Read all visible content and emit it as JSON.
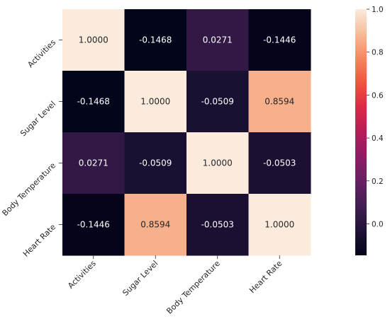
{
  "chart_data": {
    "type": "heatmap",
    "title": "",
    "xlabel": "",
    "ylabel": "",
    "x_categories": [
      "Activities",
      "Sugar Level",
      "Body Temperature",
      "Heart Rate"
    ],
    "y_categories": [
      "Activities",
      "Sugar Level",
      "Body Temperature",
      "Heart Rate"
    ],
    "values": [
      [
        1.0,
        -0.1468,
        0.0271,
        -0.1446
      ],
      [
        -0.1468,
        1.0,
        -0.0509,
        0.8594
      ],
      [
        0.0271,
        -0.0509,
        1.0,
        -0.0503
      ],
      [
        -0.1446,
        0.8594,
        -0.0503,
        1.0
      ]
    ],
    "cell_labels": [
      [
        "1.0000",
        "-0.1468",
        "0.0271",
        "-0.1446"
      ],
      [
        "-0.1468",
        "1.0000",
        "-0.0509",
        "0.8594"
      ],
      [
        "0.0271",
        "-0.0509",
        "1.0000",
        "-0.0503"
      ],
      [
        "-0.1446",
        "0.8594",
        "-0.0503",
        "1.0000"
      ]
    ],
    "colormap": "rocket",
    "value_range": [
      -0.1468,
      1.0
    ],
    "colorbar": {
      "ticks": [
        0.0,
        0.2,
        0.4,
        0.6,
        0.8,
        1.0
      ],
      "tick_labels": [
        "0.0",
        "0.2",
        "0.4",
        "0.6",
        "0.8",
        "1.0"
      ]
    },
    "grid": false,
    "legend": "colorbar-right"
  }
}
